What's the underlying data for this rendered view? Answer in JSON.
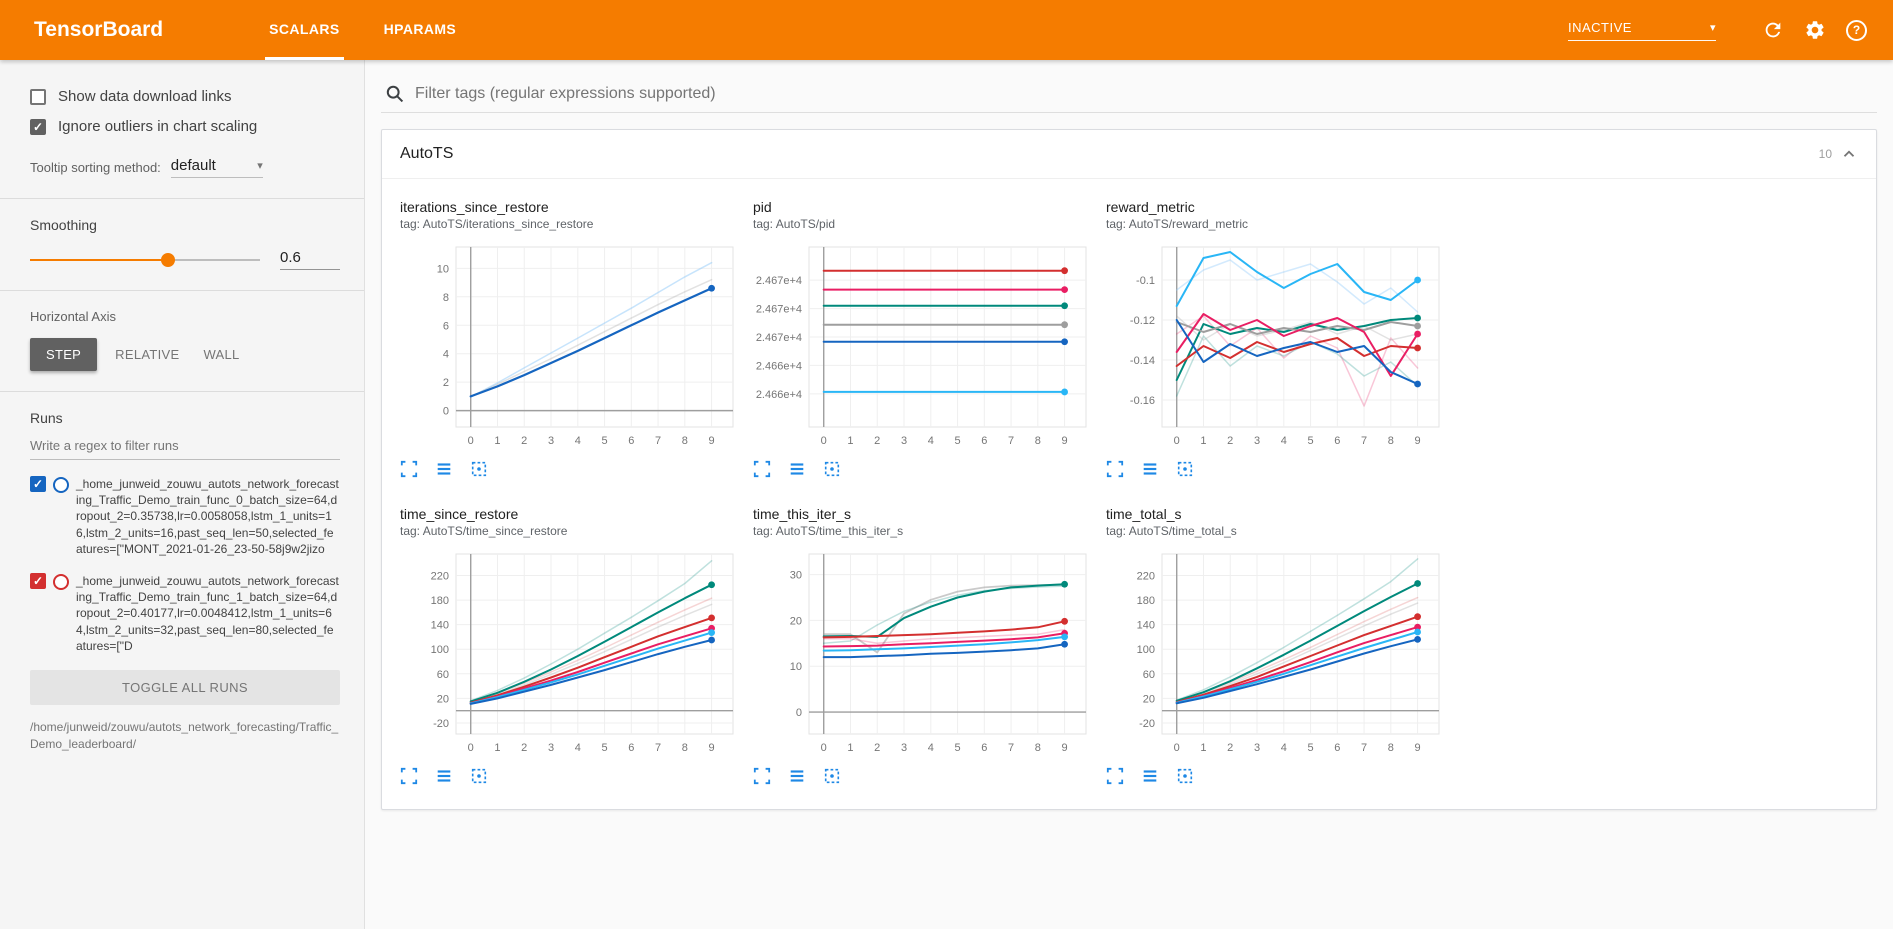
{
  "header": {
    "title": "TensorBoard",
    "tabs": [
      {
        "label": "SCALARS",
        "active": true
      },
      {
        "label": "HPARAMS",
        "active": false
      }
    ],
    "status": {
      "value": "INACTIVE"
    },
    "icons": [
      "refresh-icon",
      "settings-gear-icon",
      "help-icon"
    ],
    "accent_color": "#f57c00"
  },
  "sidebar": {
    "show_download": {
      "label": "Show data download links",
      "checked": false
    },
    "ignore_outliers": {
      "label": "Ignore outliers in chart scaling",
      "checked": true
    },
    "tooltip_sort": {
      "label": "Tooltip sorting method:",
      "value": "default"
    },
    "smoothing": {
      "label": "Smoothing",
      "value": "0.6",
      "percent": 60
    },
    "axis": {
      "label": "Horizontal Axis",
      "options": [
        {
          "label": "STEP",
          "active": true
        },
        {
          "label": "RELATIVE",
          "active": false
        },
        {
          "label": "WALL",
          "active": false
        }
      ]
    },
    "runs": {
      "label": "Runs",
      "filter_placeholder": "Write a regex to filter runs",
      "items": [
        {
          "name": "_home_junweid_zouwu_autots_network_forecasting_Traffic_Demo_train_func_0_batch_size=64,dropout_2=0.35738,lr=0.0058058,lstm_1_units=16,lstm_2_units=16,past_seq_len=50,selected_features=[\"MONT_2021-01-26_23-50-58j9w2jizo",
          "color": "#1565c0",
          "checked": true
        },
        {
          "name": "_home_junweid_zouwu_autots_network_forecasting_Traffic_Demo_train_func_1_batch_size=64,dropout_2=0.40177,lr=0.0048412,lstm_1_units=64,lstm_2_units=32,past_seq_len=80,selected_features=[\"D",
          "color": "#d32f2f",
          "checked": true
        }
      ],
      "toggle_all": "TOGGLE ALL RUNS",
      "base_path": "/home/junweid/zouwu/autots_network_forecasting/Traffic_Demo_leaderboard/"
    }
  },
  "main": {
    "filter_placeholder": "Filter tags (regular expressions supported)",
    "section": {
      "title": "AutoTS",
      "count": "10"
    },
    "chart_action_icons": [
      "expand-chart-icon",
      "run-lines-icon",
      "fit-domain-icon"
    ]
  },
  "chart_data": [
    {
      "type": "line",
      "title": "iterations_since_restore",
      "tag": "tag: AutoTS/iterations_since_restore",
      "x": [
        0,
        1,
        2,
        3,
        4,
        5,
        6,
        7,
        8,
        9
      ],
      "xlim": [
        -0.55,
        9.8
      ],
      "ylim": [
        -1.15,
        11.5
      ],
      "xticks": [
        0,
        1,
        2,
        3,
        4,
        5,
        6,
        7,
        8,
        9
      ],
      "ytick_v": [
        0,
        2,
        4,
        6,
        8,
        10
      ],
      "ytick_l": [
        "0",
        "2",
        "4",
        "6",
        "8",
        "10"
      ],
      "series": [
        {
          "name": "run_0_faded",
          "color": "#90caf9",
          "o": 0.5,
          "w": 1.5,
          "values": [
            0.95,
            1.95,
            3,
            4.05,
            5.1,
            6.15,
            7.2,
            8.3,
            9.4,
            10.4
          ]
        },
        {
          "name": "run_faded_gray",
          "color": "#9e9e9e",
          "o": 0.3,
          "w": 1.5,
          "values": [
            1,
            1.85,
            2.75,
            3.65,
            4.6,
            5.55,
            6.5,
            7.45,
            8.35,
            9.2
          ]
        },
        {
          "name": "run_blue",
          "color": "#1565c0",
          "w": 2.2,
          "dot": true,
          "values": [
            1,
            1.7,
            2.5,
            3.35,
            4.2,
            5.1,
            6,
            6.9,
            7.75,
            8.6
          ]
        }
      ]
    },
    {
      "type": "line",
      "title": "pid",
      "tag": "tag: AutoTS/pid",
      "x": [
        0,
        1,
        2,
        3,
        4,
        5,
        6,
        7,
        8,
        9
      ],
      "xlim": [
        -0.55,
        9.8
      ],
      "ylim": [
        24656.5,
        24675.5
      ],
      "xticks": [
        0,
        1,
        2,
        3,
        4,
        5,
        6,
        7,
        8,
        9
      ],
      "ytick_v": [
        24672,
        24669,
        24666,
        24663,
        24660
      ],
      "ytick_l": [
        "2.467e+4",
        "2.467e+4",
        "2.467e+4",
        "2.466e+4",
        "2.466e+4"
      ],
      "series": [
        {
          "name": "run_red",
          "color": "#d32f2f",
          "w": 2,
          "dot": true,
          "const": 24673
        },
        {
          "name": "run_pink",
          "color": "#e91e63",
          "w": 2,
          "dot": true,
          "const": 24671
        },
        {
          "name": "run_teal",
          "color": "#00897b",
          "w": 2,
          "dot": true,
          "const": 24669.3
        },
        {
          "name": "run_gray",
          "color": "#9e9e9e",
          "w": 2,
          "dot": true,
          "const": 24667.3
        },
        {
          "name": "run_blue",
          "color": "#1565c0",
          "w": 2,
          "dot": true,
          "const": 24665.5
        },
        {
          "name": "run_lightblue",
          "color": "#29b6f6",
          "w": 2,
          "dot": true,
          "const": 24660.2
        }
      ]
    },
    {
      "type": "line",
      "title": "reward_metric",
      "tag": "tag: AutoTS/reward_metric",
      "x": [
        0,
        1,
        2,
        3,
        4,
        5,
        6,
        7,
        8,
        9
      ],
      "xlim": [
        -0.55,
        9.8
      ],
      "ylim": [
        -0.1735,
        -0.0835
      ],
      "xticks": [
        0,
        1,
        2,
        3,
        4,
        5,
        6,
        7,
        8,
        9
      ],
      "ytick_v": [
        -0.1,
        -0.12,
        -0.14,
        -0.16
      ],
      "ytick_l": [
        "-0.1",
        "-0.12",
        "-0.14",
        "-0.16"
      ],
      "series": [
        {
          "name": "faded_lightblue",
          "color": "#90caf9",
          "o": 0.4,
          "w": 1.5,
          "values": [
            -0.105,
            -0.095,
            -0.09,
            -0.1,
            -0.096,
            -0.092,
            -0.101,
            -0.112,
            -0.104,
            -0.116
          ]
        },
        {
          "name": "faded_pink",
          "color": "#e91e63",
          "o": 0.25,
          "w": 1.5,
          "values": [
            -0.127,
            -0.118,
            -0.133,
            -0.124,
            -0.139,
            -0.128,
            -0.134,
            -0.163,
            -0.129,
            -0.144
          ]
        },
        {
          "name": "faded_teal",
          "color": "#00897b",
          "o": 0.25,
          "w": 1.5,
          "values": [
            -0.158,
            -0.128,
            -0.143,
            -0.133,
            -0.138,
            -0.131,
            -0.137,
            -0.148,
            -0.141,
            -0.153
          ]
        },
        {
          "name": "faded_gray",
          "color": "#9e9e9e",
          "o": 0.3,
          "w": 1.5,
          "values": [
            -0.118,
            -0.13,
            -0.122,
            -0.128,
            -0.125,
            -0.121,
            -0.127,
            -0.123,
            -0.13,
            -0.127
          ]
        },
        {
          "name": "run_lightblue",
          "color": "#29b6f6",
          "w": 2,
          "dot": true,
          "values": [
            -0.113,
            -0.089,
            -0.086,
            -0.096,
            -0.104,
            -0.097,
            -0.092,
            -0.106,
            -0.11,
            -0.1
          ]
        },
        {
          "name": "run_teal",
          "color": "#00897b",
          "w": 2,
          "dot": true,
          "values": [
            -0.15,
            -0.122,
            -0.127,
            -0.124,
            -0.126,
            -0.122,
            -0.125,
            -0.123,
            -0.12,
            -0.119
          ]
        },
        {
          "name": "run_gray",
          "color": "#9e9e9e",
          "w": 2,
          "dot": true,
          "values": [
            -0.121,
            -0.126,
            -0.122,
            -0.127,
            -0.124,
            -0.126,
            -0.123,
            -0.125,
            -0.121,
            -0.123
          ]
        },
        {
          "name": "run_pink",
          "color": "#e91e63",
          "w": 2,
          "dot": true,
          "values": [
            -0.136,
            -0.117,
            -0.125,
            -0.12,
            -0.128,
            -0.123,
            -0.119,
            -0.126,
            -0.148,
            -0.127
          ]
        },
        {
          "name": "run_red",
          "color": "#d32f2f",
          "w": 2,
          "dot": true,
          "values": [
            -0.143,
            -0.133,
            -0.139,
            -0.131,
            -0.136,
            -0.132,
            -0.129,
            -0.138,
            -0.133,
            -0.134
          ]
        },
        {
          "name": "run_blue",
          "color": "#1565c0",
          "w": 2,
          "dot": true,
          "values": [
            -0.12,
            -0.141,
            -0.132,
            -0.138,
            -0.134,
            -0.131,
            -0.136,
            -0.133,
            -0.146,
            -0.152
          ]
        }
      ]
    },
    {
      "type": "line",
      "title": "time_since_restore",
      "tag": "tag: AutoTS/time_since_restore",
      "x": [
        0,
        1,
        2,
        3,
        4,
        5,
        6,
        7,
        8,
        9
      ],
      "xlim": [
        -0.55,
        9.8
      ],
      "ylim": [
        -38,
        255
      ],
      "xticks": [
        0,
        1,
        2,
        3,
        4,
        5,
        6,
        7,
        8,
        9
      ],
      "ytick_v": [
        220,
        180,
        140,
        100,
        60,
        20,
        -20
      ],
      "ytick_l": [
        "220",
        "180",
        "140",
        "100",
        "60",
        "20",
        "-20"
      ],
      "series": [
        {
          "name": "faded_teal",
          "color": "#00897b",
          "o": 0.25,
          "w": 1.5,
          "values": [
            16,
            33,
            53,
            76,
            100,
            126,
            152,
            179,
            207,
            244
          ]
        },
        {
          "name": "faded_gray",
          "color": "#9e9e9e",
          "o": 0.3,
          "w": 1.5,
          "values": [
            14,
            27,
            42,
            59,
            77,
            96,
            116,
            136,
            155,
            173
          ]
        },
        {
          "name": "faded_red",
          "color": "#d32f2f",
          "o": 0.2,
          "w": 1.5,
          "values": [
            15,
            29,
            45,
            63,
            82,
            102,
            123,
            144,
            164,
            183
          ]
        },
        {
          "name": "run_teal",
          "color": "#00897b",
          "w": 2,
          "dot": true,
          "values": [
            15,
            29,
            47,
            67,
            89,
            112,
            136,
            160,
            183,
            205
          ]
        },
        {
          "name": "run_red",
          "color": "#d32f2f",
          "w": 2,
          "dot": true,
          "values": [
            13,
            25,
            39,
            54,
            70,
            87,
            104,
            121,
            136,
            151
          ]
        },
        {
          "name": "run_pink",
          "color": "#e91e63",
          "w": 2,
          "dot": true,
          "values": [
            12,
            23,
            36,
            49,
            63,
            78,
            93,
            108,
            121,
            134
          ]
        },
        {
          "name": "run_lightblue",
          "color": "#29b6f6",
          "w": 2,
          "dot": true,
          "values": [
            12,
            22,
            34,
            46,
            59,
            73,
            87,
            101,
            114,
            127
          ]
        },
        {
          "name": "run_blue",
          "color": "#1565c0",
          "w": 2,
          "dot": true,
          "values": [
            11,
            20,
            31,
            42,
            54,
            66,
            79,
            92,
            104,
            115
          ]
        }
      ]
    },
    {
      "type": "line",
      "title": "time_this_iter_s",
      "tag": "tag: AutoTS/time_this_iter_s",
      "x": [
        0,
        1,
        2,
        3,
        4,
        5,
        6,
        7,
        8,
        9
      ],
      "xlim": [
        -0.55,
        9.8
      ],
      "ylim": [
        -4.8,
        34.5
      ],
      "xticks": [
        0,
        1,
        2,
        3,
        4,
        5,
        6,
        7,
        8,
        9
      ],
      "ytick_v": [
        0,
        10,
        20,
        30
      ],
      "ytick_l": [
        "0",
        "10",
        "20",
        "30"
      ],
      "series": [
        {
          "name": "run_gray",
          "color": "#9e9e9e",
          "o": 0.55,
          "w": 1.8,
          "values": [
            17,
            17,
            13,
            21.5,
            24.5,
            26.3,
            27.2,
            27.6,
            27.7,
            27.8
          ]
        },
        {
          "name": "faded_teal",
          "color": "#00897b",
          "o": 0.25,
          "w": 1.5,
          "values": [
            15,
            15.5,
            19,
            22,
            24,
            25.5,
            26.5,
            27,
            27.3,
            27.5
          ]
        },
        {
          "name": "faded_pink",
          "color": "#e91e63",
          "o": 0.25,
          "w": 1.5,
          "values": [
            16,
            16,
            15,
            15.5,
            16,
            16.2,
            16.5,
            16.8,
            17,
            18
          ]
        },
        {
          "name": "run_teal",
          "color": "#00897b",
          "w": 2,
          "dot": true,
          "values": [
            16.5,
            16.6,
            16.4,
            20.5,
            23,
            25,
            26.3,
            27.2,
            27.6,
            27.9
          ]
        },
        {
          "name": "run_red",
          "color": "#d32f2f",
          "w": 2,
          "dot": true,
          "values": [
            16.3,
            16.4,
            16.6,
            16.8,
            17,
            17.3,
            17.6,
            18,
            18.5,
            19.8
          ]
        },
        {
          "name": "run_pink",
          "color": "#e91e63",
          "w": 2,
          "dot": true,
          "values": [
            14.3,
            14.4,
            14.5,
            14.8,
            15,
            15.3,
            15.6,
            15.9,
            16.3,
            17.2
          ]
        },
        {
          "name": "run_lightblue",
          "color": "#29b6f6",
          "w": 2,
          "dot": true,
          "values": [
            13.4,
            13.5,
            13.7,
            13.9,
            14.2,
            14.5,
            14.8,
            15.2,
            15.7,
            16.4
          ]
        },
        {
          "name": "run_blue",
          "color": "#1565c0",
          "w": 2,
          "dot": true,
          "values": [
            12,
            12,
            12.2,
            12.4,
            12.7,
            12.9,
            13.2,
            13.5,
            13.9,
            14.8
          ]
        }
      ]
    },
    {
      "type": "line",
      "title": "time_total_s",
      "tag": "tag: AutoTS/time_total_s",
      "x": [
        0,
        1,
        2,
        3,
        4,
        5,
        6,
        7,
        8,
        9
      ],
      "xlim": [
        -0.55,
        9.8
      ],
      "ylim": [
        -38,
        255
      ],
      "xticks": [
        0,
        1,
        2,
        3,
        4,
        5,
        6,
        7,
        8,
        9
      ],
      "ytick_v": [
        220,
        180,
        140,
        100,
        60,
        20,
        -20
      ],
      "ytick_l": [
        "220",
        "180",
        "140",
        "100",
        "60",
        "20",
        "-20"
      ],
      "series": [
        {
          "name": "faded_teal",
          "color": "#00897b",
          "o": 0.25,
          "w": 1.5,
          "values": [
            17,
            34,
            55,
            78,
            103,
            129,
            155,
            182,
            210,
            247
          ]
        },
        {
          "name": "faded_gray",
          "color": "#9e9e9e",
          "o": 0.3,
          "w": 1.5,
          "values": [
            15,
            28,
            43,
            60,
            78,
            98,
            118,
            138,
            157,
            175
          ]
        },
        {
          "name": "faded_red",
          "color": "#d32f2f",
          "o": 0.2,
          "w": 1.5,
          "values": [
            16,
            30,
            46,
            64,
            83,
            103,
            124,
            145,
            165,
            184
          ]
        },
        {
          "name": "run_teal",
          "color": "#00897b",
          "w": 2,
          "dot": true,
          "values": [
            16,
            30,
            48,
            69,
            91,
            114,
            138,
            162,
            185,
            207
          ]
        },
        {
          "name": "run_red",
          "color": "#d32f2f",
          "w": 2,
          "dot": true,
          "values": [
            14,
            26,
            40,
            55,
            72,
            89,
            106,
            123,
            138,
            153
          ]
        },
        {
          "name": "run_pink",
          "color": "#e91e63",
          "w": 2,
          "dot": true,
          "values": [
            13,
            24,
            37,
            50,
            64,
            79,
            95,
            110,
            123,
            136
          ]
        },
        {
          "name": "run_lightblue",
          "color": "#29b6f6",
          "w": 2,
          "dot": true,
          "values": [
            13,
            23,
            35,
            47,
            60,
            74,
            88,
            102,
            115,
            128
          ]
        },
        {
          "name": "run_blue",
          "color": "#1565c0",
          "w": 2,
          "dot": true,
          "values": [
            12,
            21,
            32,
            43,
            55,
            67,
            80,
            93,
            105,
            116
          ]
        }
      ]
    }
  ]
}
